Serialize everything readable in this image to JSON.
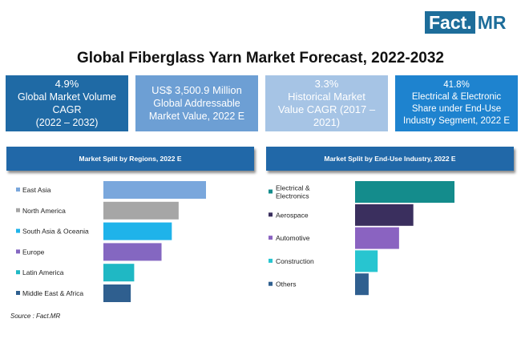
{
  "logo": {
    "part1": "Fact.",
    "part2": "MR"
  },
  "title": "Global Fiberglass Yarn Market Forecast, 2022-2032",
  "kpis": [
    {
      "line1": "4.9%",
      "line2": "Global Market Volume",
      "line3": "CAGR",
      "line4": "(2022 – 2032)",
      "color": "#1f6aa5"
    },
    {
      "line1": "US$ 3,500.9 Million",
      "line2": "Global Addressable",
      "line3": "Market Value, 2022 E",
      "color": "#6d9fd4"
    },
    {
      "line1": "3.3%",
      "line2": "Historical Market",
      "line3": "Value CAGR (2017 –",
      "line4": "2021)",
      "color": "#a6c4e5"
    },
    {
      "line1": "41.8%",
      "line2": "Electrical & Electronic",
      "line3": "Share under End-Use",
      "line4": "Industry Segment, 2022 E",
      "color": "#1e83cf"
    }
  ],
  "source": "Source : Fact.MR",
  "chart_data": [
    {
      "type": "bar",
      "orientation": "horizontal",
      "title": "Market Split by Regions, 2022 E",
      "categories": [
        "East Asia",
        "North America",
        "South Asia & Oceania",
        "Europe",
        "Latin America",
        "Middle East & Africa"
      ],
      "values": [
        30,
        22,
        20,
        17,
        9,
        8
      ],
      "colors": [
        "#7aa7dc",
        "#a6a6a6",
        "#1fb3ea",
        "#8467c1",
        "#1fb8c4",
        "#2f5f8f"
      ]
    },
    {
      "type": "bar",
      "orientation": "horizontal",
      "title": "Market Split by End-Use Industry, 2022 E",
      "categories": [
        "Electrical & Electronics",
        "Aerospace",
        "Automotive",
        "Construction",
        "Others"
      ],
      "values": [
        41.8,
        24.5,
        18.5,
        9.5,
        5.7
      ],
      "colors": [
        "#148c8c",
        "#3a2f5e",
        "#8a63c1",
        "#27c5d0",
        "#2f5f8f"
      ]
    }
  ]
}
